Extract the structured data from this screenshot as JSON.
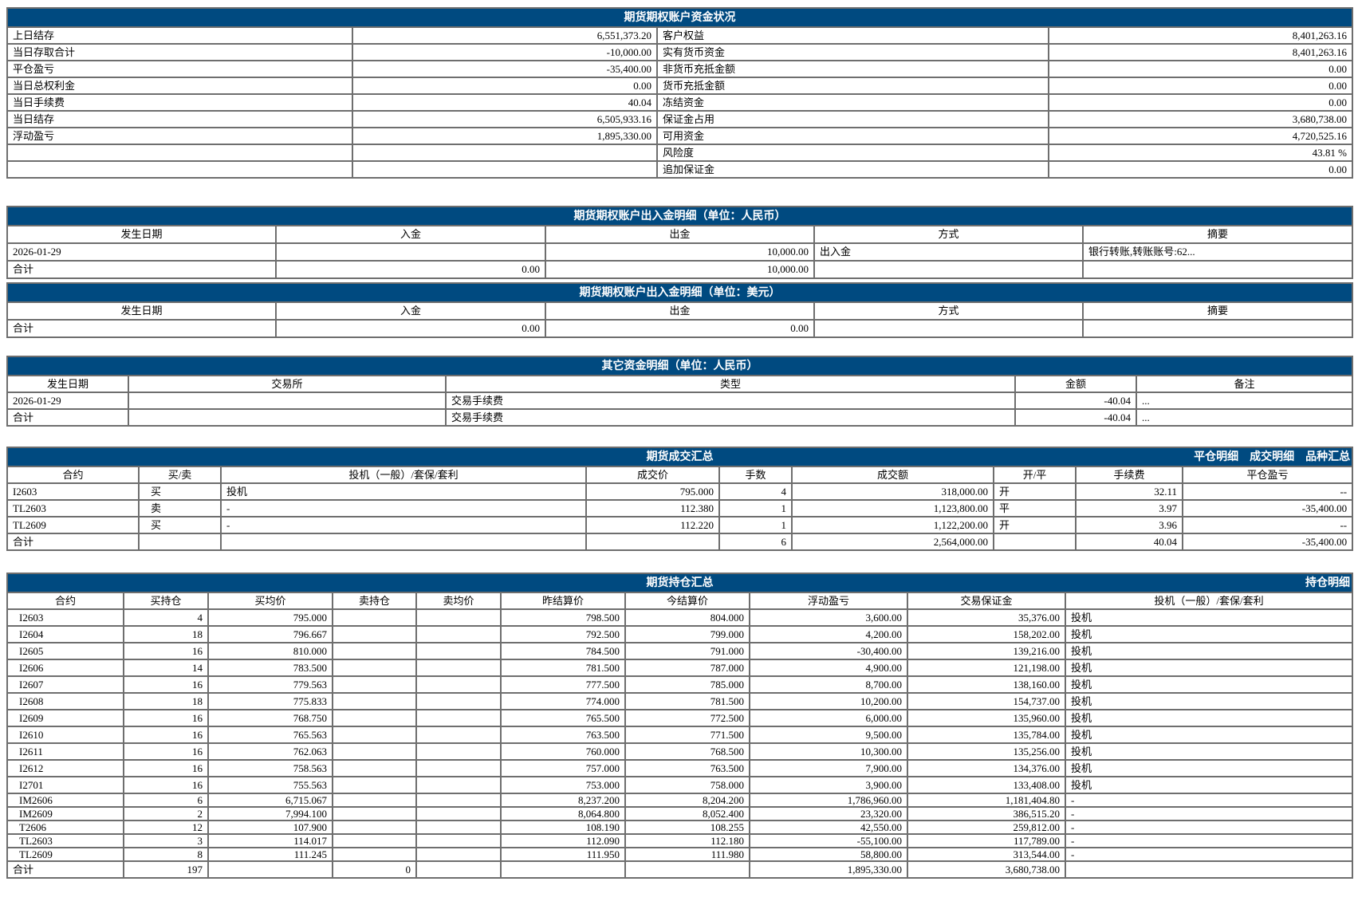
{
  "account_status": {
    "title": "期货期权账户资金状况",
    "rows": [
      [
        "上日结存",
        "6,551,373.20",
        "客户权益",
        "8,401,263.16"
      ],
      [
        "当日存取合计",
        "-10,000.00",
        "实有货币资金",
        "8,401,263.16"
      ],
      [
        "平仓盈亏",
        "-35,400.00",
        "非货币充抵金额",
        "0.00"
      ],
      [
        "当日总权利金",
        "0.00",
        "货币充抵金额",
        "0.00"
      ],
      [
        "当日手续费",
        "40.04",
        "冻结资金",
        "0.00"
      ],
      [
        "当日结存",
        "6,505,933.16",
        "保证金占用",
        "3,680,738.00"
      ],
      [
        "浮动盈亏",
        "1,895,330.00",
        "可用资金",
        "4,720,525.16"
      ],
      [
        "",
        "",
        "风险度",
        "43.81 %"
      ],
      [
        "",
        "",
        "追加保证金",
        "0.00"
      ]
    ]
  },
  "deposit_cny": {
    "title": "期货期权账户出入金明细（单位：人民币）",
    "headers": [
      "发生日期",
      "入金",
      "出金",
      "方式",
      "摘要"
    ],
    "rows": [
      [
        "2026-01-29",
        "",
        "10,000.00",
        "出入金",
        "银行转账,转账账号:62..."
      ],
      [
        "合计",
        "0.00",
        "10,000.00",
        "",
        ""
      ]
    ]
  },
  "deposit_usd": {
    "title": "期货期权账户出入金明细（单位：美元）",
    "headers": [
      "发生日期",
      "入金",
      "出金",
      "方式",
      "摘要"
    ],
    "rows": [
      [
        "合计",
        "0.00",
        "0.00",
        "",
        ""
      ]
    ]
  },
  "other_funds": {
    "title": "其它资金明细（单位：人民币）",
    "headers": [
      "发生日期",
      "交易所",
      "类型",
      "金额",
      "备注"
    ],
    "rows": [
      [
        "2026-01-29",
        "",
        "交易手续费",
        "-40.04",
        "..."
      ],
      [
        "合计",
        "",
        "交易手续费",
        "-40.04",
        "..."
      ]
    ]
  },
  "trade_summary": {
    "title": "期货成交汇总",
    "links": [
      "平仓明细",
      "成交明细",
      "品种汇总"
    ],
    "headers": [
      "合约",
      "买/卖",
      "投机（一般）/套保/套利",
      "成交价",
      "手数",
      "成交额",
      "开/平",
      "手续费",
      "平仓盈亏"
    ],
    "rows": [
      [
        "I2603",
        "买",
        "投机",
        "795.000",
        "4",
        "318,000.00",
        "开",
        "32.11",
        "--"
      ],
      [
        "TL2603",
        "卖",
        "-",
        "112.380",
        "1",
        "1,123,800.00",
        "平",
        "3.97",
        "-35,400.00"
      ],
      [
        "TL2609",
        "买",
        "-",
        "112.220",
        "1",
        "1,122,200.00",
        "开",
        "3.96",
        "--"
      ],
      [
        "合计",
        "",
        "",
        "",
        "6",
        "2,564,000.00",
        "",
        "40.04",
        "-35,400.00"
      ]
    ]
  },
  "positions": {
    "title": "期货持仓汇总",
    "links": [
      "持仓明细"
    ],
    "headers": [
      "合约",
      "买持仓",
      "买均价",
      "卖持仓",
      "卖均价",
      "昨结算价",
      "今结算价",
      "浮动盈亏",
      "交易保证金",
      "投机（一般）/套保/套利"
    ],
    "rows": [
      [
        "I2603",
        "4",
        "795.000",
        "",
        "",
        "798.500",
        "804.000",
        "3,600.00",
        "35,376.00",
        "投机"
      ],
      [
        "I2604",
        "18",
        "796.667",
        "",
        "",
        "792.500",
        "799.000",
        "4,200.00",
        "158,202.00",
        "投机"
      ],
      [
        "I2605",
        "16",
        "810.000",
        "",
        "",
        "784.500",
        "791.000",
        "-30,400.00",
        "139,216.00",
        "投机"
      ],
      [
        "I2606",
        "14",
        "783.500",
        "",
        "",
        "781.500",
        "787.000",
        "4,900.00",
        "121,198.00",
        "投机"
      ],
      [
        "I2607",
        "16",
        "779.563",
        "",
        "",
        "777.500",
        "785.000",
        "8,700.00",
        "138,160.00",
        "投机"
      ],
      [
        "I2608",
        "18",
        "775.833",
        "",
        "",
        "774.000",
        "781.500",
        "10,200.00",
        "154,737.00",
        "投机"
      ],
      [
        "I2609",
        "16",
        "768.750",
        "",
        "",
        "765.500",
        "772.500",
        "6,000.00",
        "135,960.00",
        "投机"
      ],
      [
        "I2610",
        "16",
        "765.563",
        "",
        "",
        "763.500",
        "771.500",
        "9,500.00",
        "135,784.00",
        "投机"
      ],
      [
        "I2611",
        "16",
        "762.063",
        "",
        "",
        "760.000",
        "768.500",
        "10,300.00",
        "135,256.00",
        "投机"
      ],
      [
        "I2612",
        "16",
        "758.563",
        "",
        "",
        "757.000",
        "763.500",
        "7,900.00",
        "134,376.00",
        "投机"
      ],
      [
        "I2701",
        "16",
        "755.563",
        "",
        "",
        "753.000",
        "758.000",
        "3,900.00",
        "133,408.00",
        "投机"
      ],
      [
        "IM2606",
        "6",
        "6,715.067",
        "",
        "",
        "8,237.200",
        "8,204.200",
        "1,786,960.00",
        "1,181,404.80",
        "-"
      ],
      [
        "IM2609",
        "2",
        "7,994.100",
        "",
        "",
        "8,064.800",
        "8,052.400",
        "23,320.00",
        "386,515.20",
        "-"
      ],
      [
        "T2606",
        "12",
        "107.900",
        "",
        "",
        "108.190",
        "108.255",
        "42,550.00",
        "259,812.00",
        "-"
      ],
      [
        "TL2603",
        "3",
        "114.017",
        "",
        "",
        "112.090",
        "112.180",
        "-55,100.00",
        "117,789.00",
        "-"
      ],
      [
        "TL2609",
        "8",
        "111.245",
        "",
        "",
        "111.950",
        "111.980",
        "58,800.00",
        "313,544.00",
        "-"
      ],
      [
        "合计",
        "197",
        "",
        "0",
        "",
        "",
        "",
        "1,895,330.00",
        "3,680,738.00",
        ""
      ]
    ]
  },
  "colors": {
    "header_band": "#004a80",
    "grid": "#6e6e6e"
  }
}
